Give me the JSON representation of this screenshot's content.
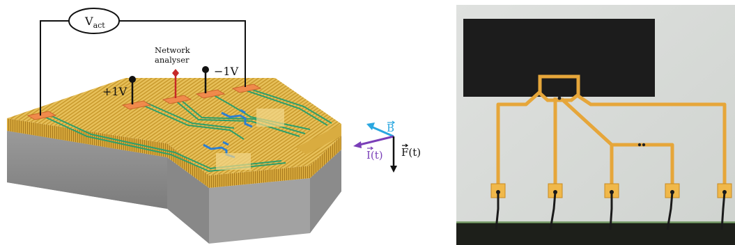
{
  "diagram": {
    "voltmeter": {
      "symbol": "V",
      "subscript": "act"
    },
    "network_analyser": {
      "line1": "Network",
      "line2": "analyser"
    },
    "probe_plus": "+1V",
    "probe_minus": "−1V",
    "vectors": {
      "field": "B",
      "current": "I(t)",
      "force": "F(t)"
    },
    "colors": {
      "gold": "#e3b84a",
      "pad": "#f08a4b",
      "trace_green": "#2f9e6a",
      "device_blue": "#2d7fd0",
      "substrate": "#8f8f8f",
      "probe_red": "#c62828",
      "arrow_b": "#2aa7e0",
      "arrow_i": "#7a3fb8"
    }
  },
  "photo": {
    "description_hidden": ""
  }
}
